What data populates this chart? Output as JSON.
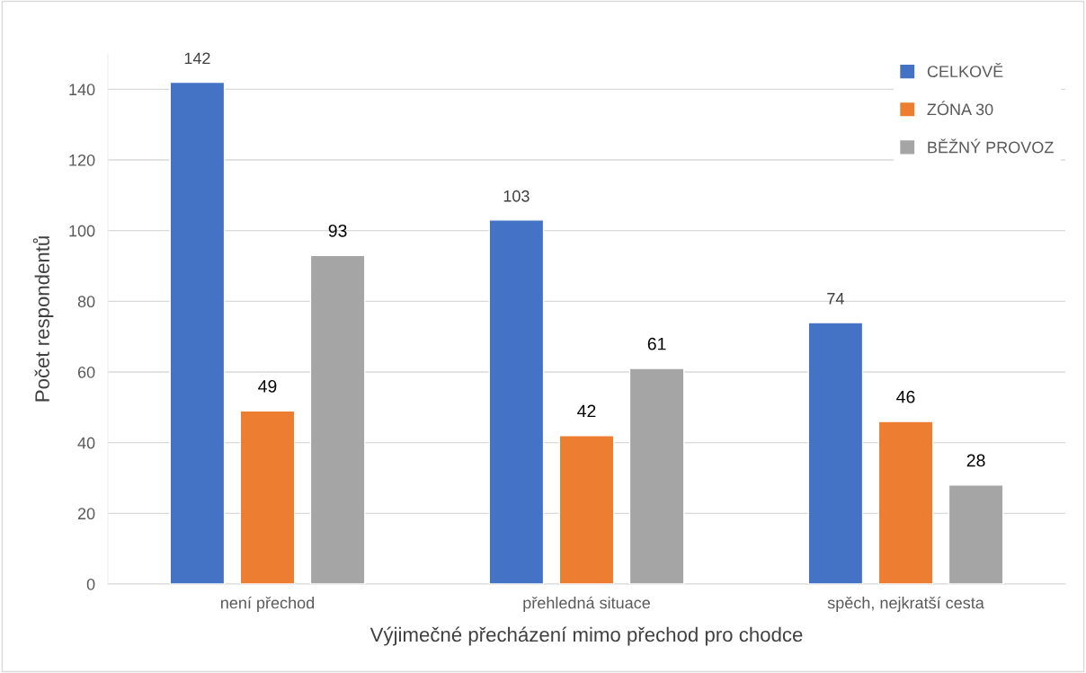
{
  "chart_data": {
    "type": "bar",
    "xlabel": "Výjimečné přecházení mimo přechod pro chodce",
    "ylabel": "Počet respondentů",
    "categories": [
      "není přechod",
      "přehledná situace",
      "spěch, nejkratší cesta"
    ],
    "series": [
      {
        "name": "CELKOVĚ",
        "color": "#4472c4",
        "values": [
          142,
          103,
          74
        ]
      },
      {
        "name": "ZÓNA 30",
        "color": "#ed7d31",
        "values": [
          49,
          42,
          46
        ]
      },
      {
        "name": "BĚŽNÝ PROVOZ",
        "color": "#a5a5a5",
        "values": [
          93,
          61,
          28
        ]
      }
    ],
    "ylim": [
      0,
      150
    ],
    "yticks": [
      0,
      20,
      40,
      60,
      80,
      100,
      120,
      140
    ],
    "grid": "y",
    "legend": "top right",
    "data_labels": true
  }
}
